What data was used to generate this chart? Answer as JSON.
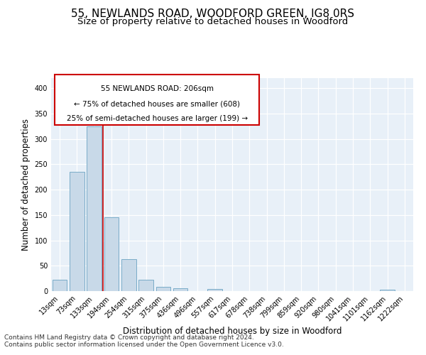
{
  "title1": "55, NEWLANDS ROAD, WOODFORD GREEN, IG8 0RS",
  "title2": "Size of property relative to detached houses in Woodford",
  "xlabel": "Distribution of detached houses by size in Woodford",
  "ylabel": "Number of detached properties",
  "bin_labels": [
    "13sqm",
    "73sqm",
    "133sqm",
    "194sqm",
    "254sqm",
    "315sqm",
    "375sqm",
    "436sqm",
    "496sqm",
    "557sqm",
    "617sqm",
    "678sqm",
    "738sqm",
    "799sqm",
    "859sqm",
    "920sqm",
    "980sqm",
    "1041sqm",
    "1101sqm",
    "1162sqm",
    "1222sqm"
  ],
  "bar_values": [
    22,
    235,
    325,
    145,
    63,
    22,
    8,
    5,
    0,
    4,
    0,
    0,
    0,
    0,
    0,
    0,
    0,
    0,
    0,
    3,
    0
  ],
  "bar_color": "#c8d9e8",
  "bar_edge_color": "#7aacc8",
  "vline_color": "#cc0000",
  "vline_pos": 2.5,
  "annotation_text_line1": "55 NEWLANDS ROAD: 206sqm",
  "annotation_text_line2": "← 75% of detached houses are smaller (608)",
  "annotation_text_line3": "25% of semi-detached houses are larger (199) →",
  "box_edge_color": "#cc0000",
  "footer1": "Contains HM Land Registry data © Crown copyright and database right 2024.",
  "footer2": "Contains public sector information licensed under the Open Government Licence v3.0.",
  "ylim": [
    0,
    420
  ],
  "yticks": [
    0,
    50,
    100,
    150,
    200,
    250,
    300,
    350,
    400
  ],
  "plot_bg_color": "#e8f0f8",
  "title1_fontsize": 11,
  "title2_fontsize": 9.5,
  "tick_fontsize": 7,
  "label_fontsize": 8.5,
  "footer_fontsize": 6.5,
  "ann_fontsize": 7.5
}
